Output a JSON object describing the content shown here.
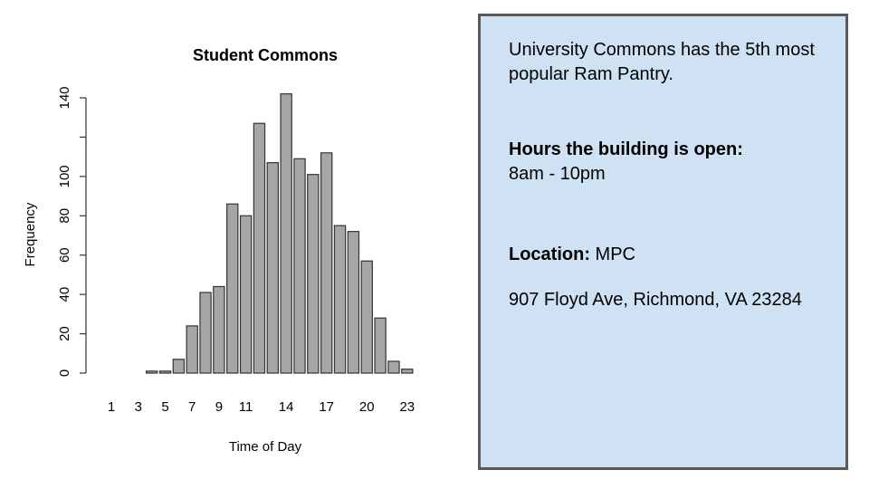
{
  "chart_data": {
    "type": "bar",
    "title": "Student Commons",
    "xlabel": "Time of Day",
    "ylabel": "Frequency",
    "ylim": [
      0,
      140
    ],
    "y_ticks": [
      "0",
      "20",
      "40",
      "60",
      "80",
      "100",
      "140"
    ],
    "x_ticks": [
      {
        "index": 0,
        "label": "1"
      },
      {
        "index": 2,
        "label": "3"
      },
      {
        "index": 4,
        "label": "5"
      },
      {
        "index": 6,
        "label": "7"
      },
      {
        "index": 8,
        "label": "9"
      },
      {
        "index": 10,
        "label": "11"
      },
      {
        "index": 13,
        "label": "14"
      },
      {
        "index": 16,
        "label": "17"
      },
      {
        "index": 19,
        "label": "20"
      },
      {
        "index": 22,
        "label": "23"
      }
    ],
    "categories": [
      "1",
      "2",
      "3",
      "4",
      "5",
      "6",
      "7",
      "8",
      "9",
      "10",
      "11",
      "12",
      "13",
      "14",
      "15",
      "16",
      "17",
      "18",
      "19",
      "20",
      "21",
      "22",
      "23",
      "24"
    ],
    "values": [
      0,
      0,
      0,
      1,
      1,
      7,
      24,
      41,
      44,
      86,
      80,
      127,
      107,
      142,
      109,
      101,
      112,
      75,
      72,
      57,
      28,
      6,
      2,
      0
    ],
    "bar_color": "#a6a6a6",
    "grid": false,
    "legend": "none"
  },
  "info": {
    "intro": "University Commons has the 5th most popular Ram Pantry.",
    "hours_label": "Hours the building is open:",
    "hours_value": "8am - 10pm",
    "location_label": "Location:",
    "location_value": " MPC",
    "address": "907 Floyd Ave, Richmond, VA 23284"
  },
  "colors": {
    "info_background": "#cfe2f3",
    "info_border": "#595959"
  }
}
